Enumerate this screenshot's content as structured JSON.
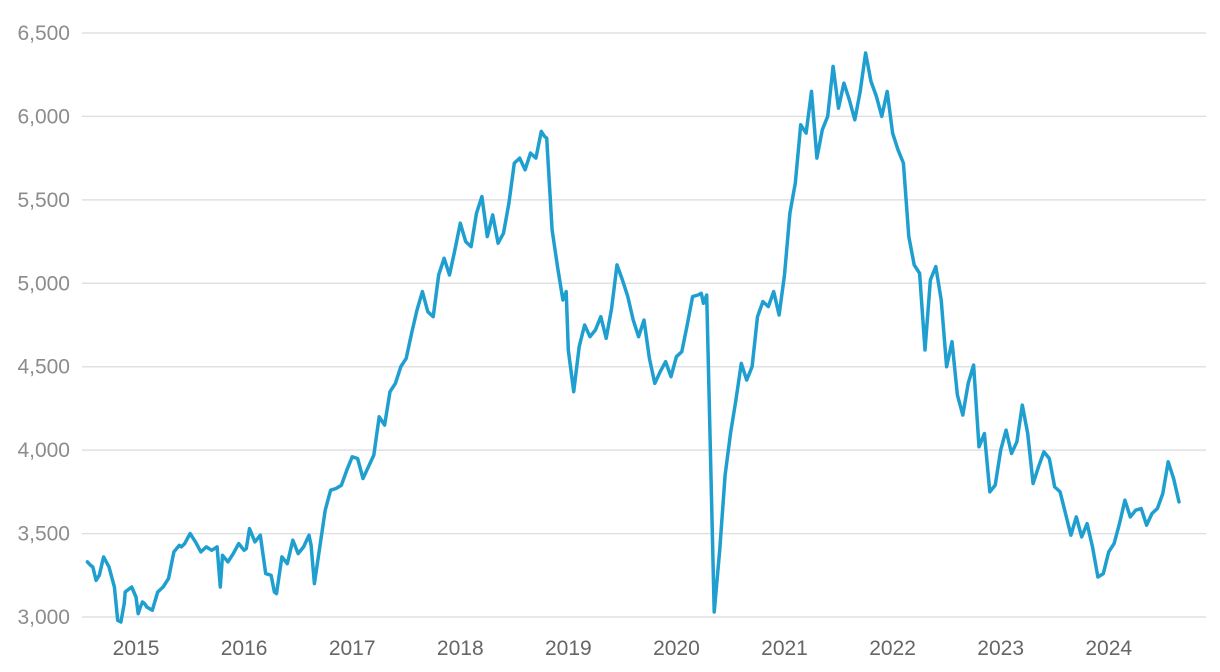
{
  "chart_data": {
    "type": "line",
    "title": "",
    "xlabel": "",
    "ylabel": "",
    "xlim": [
      2014.5,
      2024.9
    ],
    "ylim": [
      3000,
      6500
    ],
    "yticks": [
      3000,
      3500,
      4000,
      4500,
      5000,
      5500,
      6000,
      6500
    ],
    "ytick_labels": [
      "3,000",
      "3,500",
      "4,000",
      "4,500",
      "5,000",
      "5,500",
      "6,000",
      "6,500"
    ],
    "xticks": [
      2015,
      2016,
      2017,
      2018,
      2019,
      2020,
      2021,
      2022,
      2023,
      2024
    ],
    "xtick_labels": [
      "2015",
      "2016",
      "2017",
      "2018",
      "2019",
      "2020",
      "2021",
      "2022",
      "2023",
      "2024"
    ],
    "grid": "horizontal",
    "legend": "none",
    "colors": {
      "series": "#1f9fcf",
      "grid": "#e1e1e1",
      "tick": "#8c8c8c"
    },
    "series": [
      {
        "x": [
          2014.55,
          2014.58,
          2014.6,
          2014.63,
          2014.66,
          2014.7,
          2014.75,
          2014.8,
          2014.83,
          2014.86,
          2014.89,
          2014.9,
          2014.92,
          2014.96,
          2015.0,
          2015.02,
          2015.04,
          2015.06,
          2015.08,
          2015.1,
          2015.15,
          2015.2,
          2015.25,
          2015.3,
          2015.35,
          2015.4,
          2015.42,
          2015.45,
          2015.5,
          2015.55,
          2015.6,
          2015.65,
          2015.7,
          2015.75,
          2015.78,
          2015.8,
          2015.85,
          2015.9,
          2015.95,
          2016.0,
          2016.02,
          2016.05,
          2016.1,
          2016.15,
          2016.2,
          2016.25,
          2016.28,
          2016.3,
          2016.35,
          2016.4,
          2016.45,
          2016.5,
          2016.55,
          2016.6,
          2016.62,
          2016.65,
          2016.7,
          2016.75,
          2016.8,
          2016.85,
          2016.9,
          2016.95,
          2017.0,
          2017.05,
          2017.1,
          2017.15,
          2017.2,
          2017.25,
          2017.3,
          2017.35,
          2017.4,
          2017.45,
          2017.5,
          2017.55,
          2017.6,
          2017.65,
          2017.7,
          2017.75,
          2017.8,
          2017.85,
          2017.9,
          2017.95,
          2018.0,
          2018.05,
          2018.1,
          2018.15,
          2018.2,
          2018.25,
          2018.3,
          2018.35,
          2018.4,
          2018.45,
          2018.5,
          2018.55,
          2018.6,
          2018.65,
          2018.7,
          2018.75,
          2018.78,
          2018.8,
          2018.85,
          2018.9,
          2018.95,
          2018.98,
          2019.0,
          2019.05,
          2019.1,
          2019.15,
          2019.2,
          2019.25,
          2019.3,
          2019.35,
          2019.4,
          2019.45,
          2019.5,
          2019.55,
          2019.6,
          2019.65,
          2019.7,
          2019.75,
          2019.8,
          2019.85,
          2019.9,
          2019.95,
          2020.0,
          2020.05,
          2020.1,
          2020.15,
          2020.2,
          2020.23,
          2020.25,
          2020.28,
          2020.3,
          2020.35,
          2020.4,
          2020.45,
          2020.5,
          2020.55,
          2020.6,
          2020.65,
          2020.7,
          2020.75,
          2020.8,
          2020.85,
          2020.9,
          2020.95,
          2021.0,
          2021.05,
          2021.1,
          2021.15,
          2021.2,
          2021.25,
          2021.3,
          2021.35,
          2021.4,
          2021.45,
          2021.5,
          2021.55,
          2021.6,
          2021.65,
          2021.7,
          2021.75,
          2021.8,
          2021.85,
          2021.9,
          2021.95,
          2022.0,
          2022.05,
          2022.1,
          2022.15,
          2022.2,
          2022.25,
          2022.3,
          2022.35,
          2022.4,
          2022.45,
          2022.5,
          2022.55,
          2022.6,
          2022.65,
          2022.7,
          2022.75,
          2022.8,
          2022.85,
          2022.9,
          2022.95,
          2023.0,
          2023.05,
          2023.1,
          2023.15,
          2023.2,
          2023.25,
          2023.3,
          2023.35,
          2023.4,
          2023.45,
          2023.5,
          2023.55,
          2023.6,
          2023.65,
          2023.7,
          2023.75,
          2023.8,
          2023.85,
          2023.9,
          2023.95,
          2024.0,
          2024.05,
          2024.1,
          2024.15,
          2024.2,
          2024.25,
          2024.3,
          2024.35,
          2024.4,
          2024.45,
          2024.5,
          2024.55,
          2024.6,
          2024.65
        ],
        "values": [
          3330,
          3310,
          3300,
          3220,
          3250,
          3360,
          3300,
          3180,
          2980,
          2970,
          3080,
          3150,
          3160,
          3180,
          3120,
          3020,
          3060,
          3090,
          3080,
          3060,
          3040,
          3150,
          3180,
          3230,
          3390,
          3430,
          3420,
          3440,
          3500,
          3450,
          3390,
          3420,
          3400,
          3420,
          3180,
          3370,
          3330,
          3380,
          3440,
          3400,
          3410,
          3530,
          3450,
          3490,
          3260,
          3250,
          3150,
          3140,
          3360,
          3320,
          3460,
          3380,
          3420,
          3490,
          3430,
          3200,
          3420,
          3640,
          3760,
          3770,
          3790,
          3880,
          3960,
          3950,
          3830,
          3900,
          3970,
          4200,
          4150,
          4350,
          4400,
          4500,
          4550,
          4700,
          4840,
          4950,
          4830,
          4800,
          5050,
          5150,
          5050,
          5200,
          5360,
          5250,
          5220,
          5420,
          5520,
          5280,
          5410,
          5240,
          5300,
          5480,
          5720,
          5750,
          5680,
          5780,
          5750,
          5910,
          5880,
          5870,
          5320,
          5100,
          4900,
          4950,
          4600,
          4350,
          4620,
          4750,
          4680,
          4720,
          4800,
          4670,
          4850,
          5110,
          5020,
          4920,
          4780,
          4680,
          4780,
          4550,
          4400,
          4470,
          4530,
          4440,
          4560,
          4590,
          4750,
          4920,
          4930,
          4940,
          4880,
          4930,
          4400,
          3030,
          3400,
          3850,
          4100,
          4300,
          4520,
          4420,
          4500,
          4800,
          4890,
          4860,
          4950,
          4810,
          5050,
          5420,
          5600,
          5950,
          5900,
          6150,
          5750,
          5920,
          6000,
          6300,
          6050,
          6200,
          6100,
          5980,
          6150,
          6380,
          6210,
          6120,
          6000,
          6150,
          5900,
          5800,
          5720,
          5280,
          5110,
          5060,
          4600,
          5020,
          5100,
          4900,
          4500,
          4650,
          4330,
          4210,
          4400,
          4510,
          4020,
          4100,
          3750,
          3790,
          4000,
          4120,
          3980,
          4050,
          4270,
          4100,
          3800,
          3900,
          3990,
          3950,
          3780,
          3750,
          3620,
          3490,
          3600,
          3480,
          3560,
          3420,
          3240,
          3260,
          3390,
          3440,
          3560,
          3700,
          3600,
          3640,
          3650,
          3550,
          3620,
          3650,
          3740,
          3930,
          3830,
          3690
        ]
      }
    ]
  }
}
